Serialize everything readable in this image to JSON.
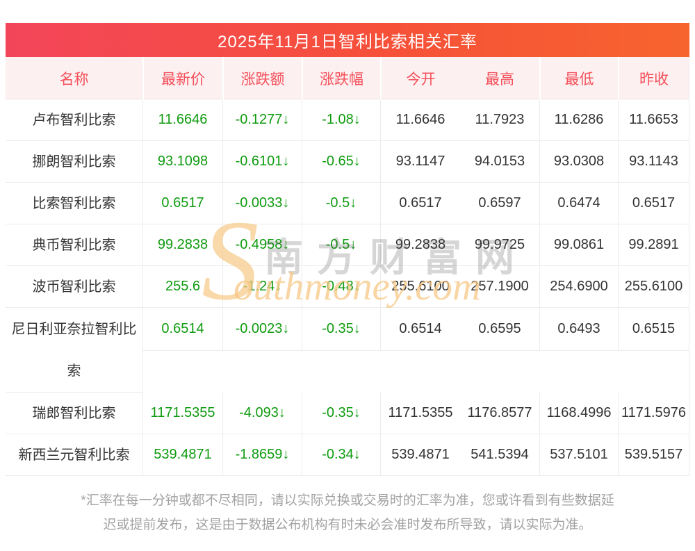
{
  "header": {
    "title": "2025年11月1日智利比索相关汇率"
  },
  "table": {
    "columns": [
      "名称",
      "最新价",
      "涨跌额",
      "涨跌幅",
      "今开",
      "最高",
      "最低",
      "昨收"
    ],
    "rows": [
      {
        "name": "卢布智利比索",
        "latest": "11.6646",
        "change": "-0.1277↓",
        "change_pct": "-1.08↓",
        "open": "11.6646",
        "high": "11.7923",
        "low": "11.6286",
        "prev_close": "11.6653"
      },
      {
        "name": "挪朗智利比索",
        "latest": "93.1098",
        "change": "-0.6101↓",
        "change_pct": "-0.65↓",
        "open": "93.1147",
        "high": "94.0153",
        "low": "93.0308",
        "prev_close": "93.1143"
      },
      {
        "name": "比索智利比索",
        "latest": "0.6517",
        "change": "-0.0033↓",
        "change_pct": "-0.5↓",
        "open": "0.6517",
        "high": "0.6597",
        "low": "0.6474",
        "prev_close": "0.6517"
      },
      {
        "name": "典币智利比索",
        "latest": "99.2838",
        "change": "-0.4958↓",
        "change_pct": "-0.5↓",
        "open": "99.2838",
        "high": "99.9725",
        "low": "99.0861",
        "prev_close": "99.2891"
      },
      {
        "name": "波币智利比索",
        "latest": "255.6",
        "change": "-1.24↓",
        "change_pct": "-0.48↓",
        "open": "255.6100",
        "high": "257.1900",
        "low": "254.6900",
        "prev_close": "255.6100"
      },
      {
        "name": "尼日利亚奈拉智利比索",
        "tall": true,
        "latest": "0.6514",
        "change": "-0.0023↓",
        "change_pct": "-0.35↓",
        "open": "0.6514",
        "high": "0.6595",
        "low": "0.6493",
        "prev_close": "0.6515"
      },
      {
        "name": "瑞郎智利比索",
        "latest": "1171.5355",
        "change": "-4.093↓",
        "change_pct": "-0.35↓",
        "open": "1171.5355",
        "high": "1176.8577",
        "low": "1168.4996",
        "prev_close": "1171.5976"
      },
      {
        "name": "新西兰元智利比索",
        "latest": "539.4871",
        "change": "-1.8659↓",
        "change_pct": "-0.34↓",
        "open": "539.4871",
        "high": "541.5394",
        "low": "537.5101",
        "prev_close": "539.5157"
      }
    ]
  },
  "watermark": {
    "s": "S",
    "cn": "南方财富网",
    "en": "outhmoney.com"
  },
  "footer": {
    "lines": [
      "*汇率在每一分钟或都不尽相同，请以实际兑换或交易时的汇率为准，您或许看到有些数据延",
      "迟或提前发布，这是由于数据公布机构有时未必会准时发布所导致，请以实际为准。"
    ]
  },
  "colors": {
    "gradient_left": "#f3455a",
    "gradient_right": "#f7642e",
    "header_bg": "#fdf0f0",
    "header_text": "#f4515c",
    "value_down_green": "#0f9b0f",
    "border": "#ececec",
    "footer_text": "#a2a2a2"
  }
}
